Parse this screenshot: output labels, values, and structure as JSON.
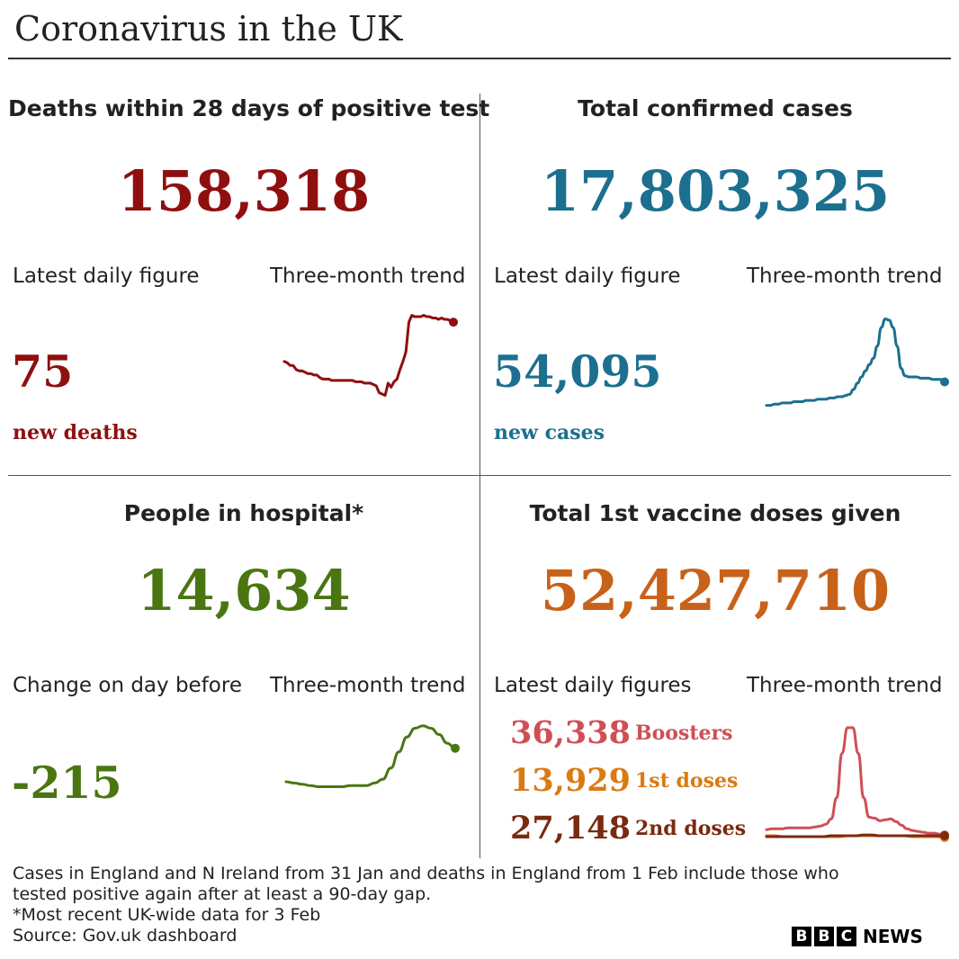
{
  "title": "Coronavirus in the UK",
  "colors": {
    "deaths": "#8f0f0f",
    "cases": "#1c6f8e",
    "hospital": "#4a7612",
    "vaccine": "#c8611a",
    "boosters": "#cf4f57",
    "first_doses": "#db7a12",
    "second_doses": "#7a2a10"
  },
  "panels": {
    "deaths": {
      "title": "Deaths within 28 days of positive test",
      "total": "158,318",
      "latest_label": "Latest daily figure",
      "trend_label": "Three-month trend",
      "latest_value": "75",
      "latest_unit": "new deaths"
    },
    "cases": {
      "title": "Total confirmed cases",
      "total": "17,803,325",
      "latest_label": "Latest daily figure",
      "trend_label": "Three-month trend",
      "latest_value": "54,095",
      "latest_unit": "new cases"
    },
    "hospital": {
      "title": "People in hospital*",
      "total": "14,634",
      "latest_label": "Change on day before",
      "trend_label": "Three-month trend",
      "latest_value": "-215"
    },
    "vaccine": {
      "title": "Total 1st vaccine doses given",
      "total": "52,427,710",
      "latest_label": "Latest daily figures",
      "trend_label": "Three-month trend",
      "doses": [
        {
          "value": "36,338",
          "label": "Boosters"
        },
        {
          "value": "13,929",
          "label": "1st doses"
        },
        {
          "value": "27,148",
          "label": "2nd doses"
        }
      ]
    }
  },
  "chart_data": [
    {
      "type": "line",
      "title": "Deaths within 28 days of positive test — three-month trend",
      "xlabel": "",
      "ylabel": "",
      "series": [
        {
          "name": "new deaths (indexed)",
          "values": [
            28,
            27,
            25,
            25,
            22,
            21,
            21,
            20,
            19,
            19,
            18,
            18,
            16,
            15,
            15,
            15,
            14,
            14,
            14,
            14,
            14,
            14,
            14,
            14,
            13,
            13,
            13,
            12,
            12,
            12,
            11,
            10,
            5,
            4,
            3,
            12,
            9,
            13,
            15,
            22,
            28,
            35,
            57,
            62,
            61,
            61,
            61,
            62,
            61,
            61,
            60,
            60,
            59,
            60,
            59,
            59,
            58,
            57
          ]
        }
      ],
      "ylim": [
        0,
        65
      ]
    },
    {
      "type": "line",
      "title": "Total confirmed cases — three-month trend",
      "xlabel": "",
      "ylabel": "",
      "series": [
        {
          "name": "new cases (indexed)",
          "values": [
            1,
            1,
            2,
            2,
            3,
            3,
            3,
            4,
            4,
            4,
            5,
            5,
            5,
            6,
            6,
            6,
            7,
            7,
            8,
            8,
            9,
            10,
            14,
            19,
            24,
            29,
            34,
            39,
            49,
            64,
            71,
            70,
            64,
            49,
            31,
            25,
            24,
            24,
            24,
            23,
            23,
            23,
            22,
            22,
            22,
            20
          ]
        }
      ],
      "ylim": [
        0,
        75
      ]
    },
    {
      "type": "line",
      "title": "People in hospital — three-month trend",
      "xlabel": "",
      "ylabel": "",
      "series": [
        {
          "name": "people in hospital (indexed)",
          "values": [
            13,
            12,
            11,
            10,
            9,
            9,
            9,
            9,
            10,
            10,
            10,
            12,
            15,
            24,
            37,
            49,
            56,
            58,
            56,
            51,
            44,
            40
          ]
        }
      ],
      "ylim": [
        0,
        60
      ]
    },
    {
      "type": "line",
      "title": "Vaccine doses — three-month trend",
      "xlabel": "",
      "ylabel": "",
      "series": [
        {
          "name": "Boosters",
          "values": [
            10,
            11,
            11,
            11,
            12,
            12,
            12,
            12,
            12,
            13,
            14,
            16,
            22,
            46,
            96,
            125,
            125,
            96,
            46,
            24,
            23,
            20,
            21,
            22,
            19,
            15,
            11,
            9,
            8,
            7,
            6,
            6,
            5,
            4
          ]
        },
        {
          "name": "1st doses",
          "values": [
            3,
            3,
            2,
            2,
            2,
            2,
            2,
            2,
            2,
            2,
            3,
            3,
            3,
            3,
            3,
            3,
            3,
            3,
            2,
            2,
            2,
            2,
            1
          ]
        },
        {
          "name": "2nd doses",
          "values": [
            2,
            2,
            2,
            2,
            2,
            2,
            2,
            2,
            3,
            3,
            3,
            3,
            4,
            4,
            3,
            3,
            3,
            3,
            3,
            3,
            3,
            3,
            3
          ]
        }
      ],
      "ylim": [
        0,
        130
      ]
    }
  ],
  "footer": {
    "line1": "Cases in England and N Ireland from 31 Jan and deaths in England from 1 Feb include those who",
    "line2": "tested positive again after at least a 90-day gap.",
    "line3": "*Most recent UK-wide data for 3 Feb",
    "line4": "Source: Gov.uk dashboard"
  },
  "brand": {
    "letters": [
      "B",
      "B",
      "C"
    ],
    "news": "NEWS"
  }
}
